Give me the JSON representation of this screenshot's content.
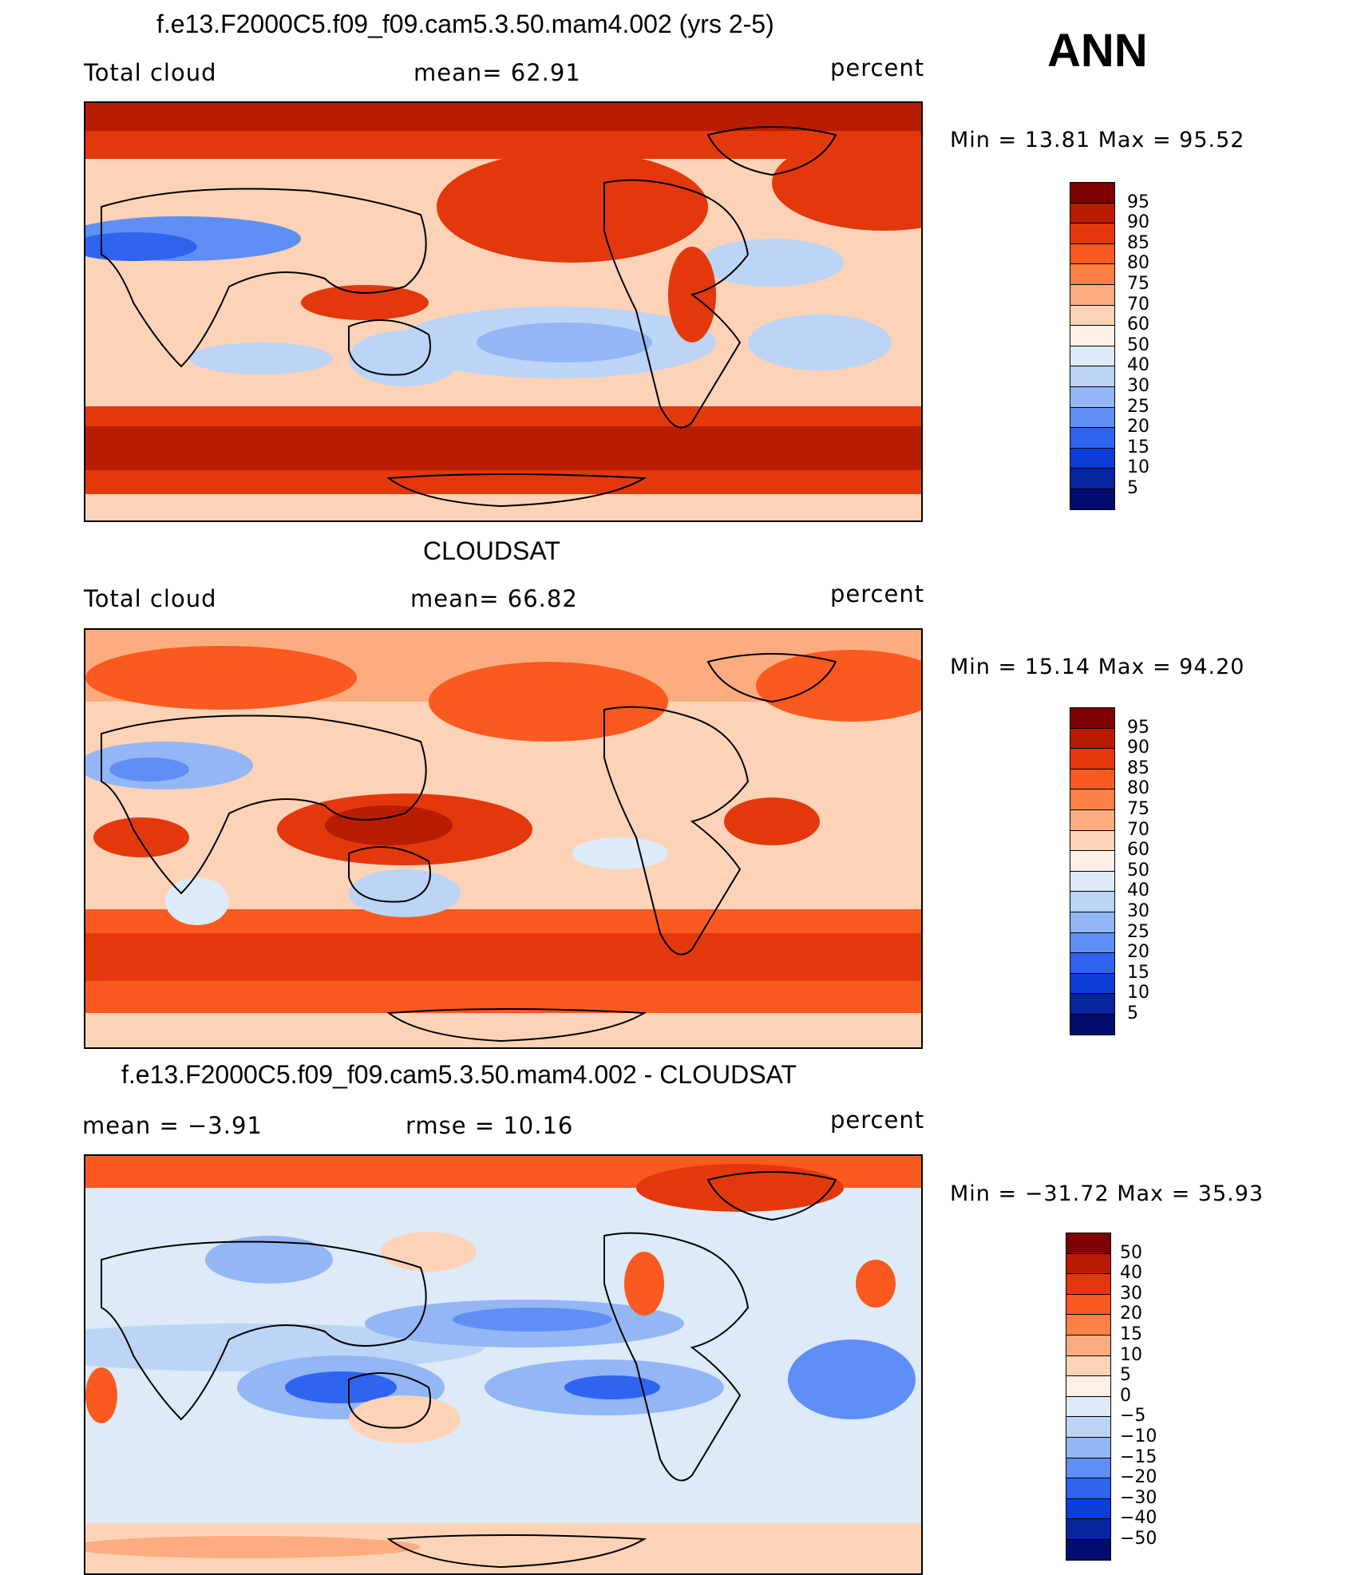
{
  "season": "ANN",
  "panels": [
    {
      "id": "model",
      "title": "f.e13.F2000C5.f09_f09.cam5.3.50.mam4.002 (yrs 2-5)",
      "left_label": "Total cloud",
      "center_label": "mean=   62.91",
      "right_label": "percent",
      "minmax": "Min =   13.81  Max =   95.52"
    },
    {
      "id": "obs",
      "title": "CLOUDSAT",
      "left_label": "Total cloud",
      "center_label": "mean=   66.82",
      "right_label": "percent",
      "minmax": "Min =   15.14  Max =   94.20"
    },
    {
      "id": "diff",
      "title": "f.e13.F2000C5.f09_f09.cam5.3.50.mam4.002 - CLOUDSAT",
      "left_label": "mean =   −3.91",
      "center_label": "rmse =   10.16",
      "right_label": "percent",
      "minmax": "Min = −31.72  Max =   35.93"
    }
  ],
  "colorbar_abs": {
    "labels": [
      "95",
      "90",
      "85",
      "80",
      "75",
      "70",
      "60",
      "50",
      "40",
      "30",
      "25",
      "20",
      "15",
      "10",
      "5"
    ],
    "colors": [
      "#7f0000",
      "#b81c02",
      "#e3380c",
      "#fa5a1f",
      "#fd8045",
      "#fdac80",
      "#fdd3b8",
      "#fdf0e6",
      "#ddeaf8",
      "#bcd4f6",
      "#93b6f5",
      "#5f8ef4",
      "#2f64ee",
      "#0b3ed8",
      "#06259e",
      "#000c6e"
    ]
  },
  "colorbar_diff": {
    "labels": [
      "50",
      "40",
      "30",
      "20",
      "15",
      "10",
      "5",
      "0",
      "−5",
      "−10",
      "−15",
      "−20",
      "−30",
      "−40",
      "−50"
    ],
    "colors": [
      "#7f0000",
      "#b81c02",
      "#e3380c",
      "#fa5a1f",
      "#fd8045",
      "#fdac80",
      "#fdd3b8",
      "#fdf0e6",
      "#ddeaf8",
      "#bcd4f6",
      "#93b6f5",
      "#5f8ef4",
      "#2f64ee",
      "#0b3ed8",
      "#06259e",
      "#000c6e"
    ]
  }
}
